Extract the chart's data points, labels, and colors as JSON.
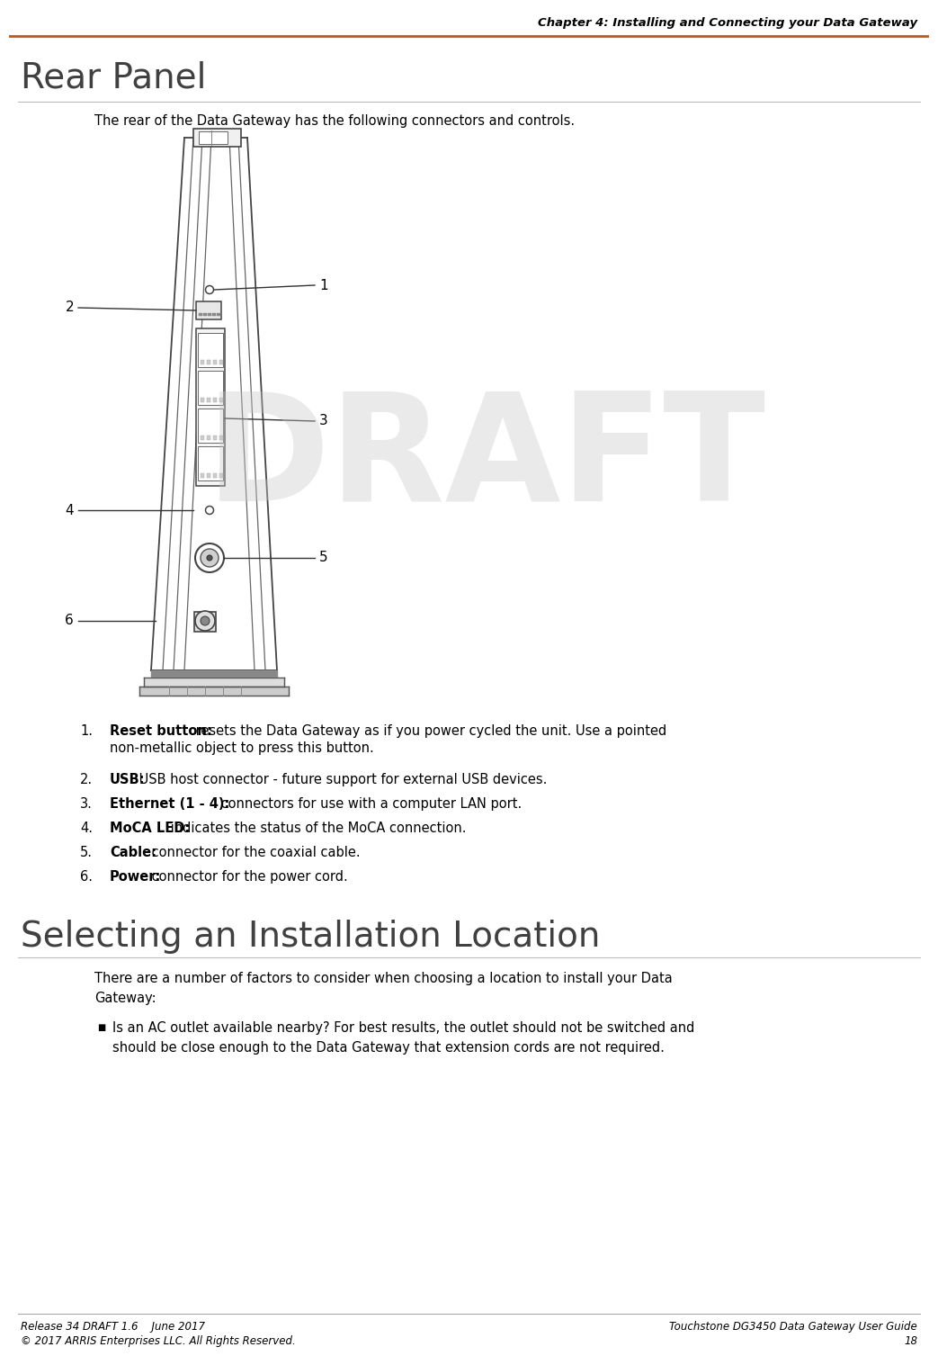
{
  "page_width": 10.23,
  "page_height": 14.8,
  "bg_color": "#ffffff",
  "header_text": "Chapter 4: Installing and Connecting your Data Gateway",
  "header_color": "#000000",
  "header_line_color": "#C8570A",
  "title_text": "Rear Panel",
  "title_fontsize": 28,
  "title_color": "#404040",
  "body_intro": "The rear of the Data Gateway has the following connectors and controls.",
  "section2_title": "Selecting an Installation Location",
  "section2_fontsize": 28,
  "section2_color": "#404040",
  "section2_intro": "There are a number of factors to consider when choosing a location to install your Data\nGateway:",
  "bullet_text": "Is an AC outlet available nearby? For best results, the outlet should not be switched and\nshould be close enough to the Data Gateway that extension cords are not required.",
  "list_items": [
    {
      "num": "1.",
      "bold": "Reset button:",
      "rest": " resets the Data Gateway as if you power cycled the unit. Use a pointed\n     non-metallic object to press this button.",
      "two_line": true
    },
    {
      "num": "2.",
      "bold": "USB:",
      "rest": " USB host connector - future support for external USB devices.",
      "two_line": false
    },
    {
      "num": "3.",
      "bold": "Ethernet (1 - 4):",
      "rest": " connectors for use with a computer LAN port.",
      "two_line": false
    },
    {
      "num": "4.",
      "bold": "MoCA LED:",
      "rest": " indicates the status of the MoCA connection.",
      "two_line": false
    },
    {
      "num": "5.",
      "bold": "Cable:",
      "rest": " connector for the coaxial cable.",
      "two_line": false
    },
    {
      "num": "6.",
      "bold": "Power:",
      "rest": " connector for the power cord.",
      "two_line": false
    }
  ],
  "footer_left1": "Release 34 DRAFT 1.6    June 2017",
  "footer_right1": "Touchstone DG3450 Data Gateway User Guide",
  "footer_left2": "© 2017 ARRIS Enterprises LLC. All Rights Reserved.",
  "footer_right2": "18",
  "footer_color": "#000000",
  "draft_text": "DRAFT",
  "draft_color": "#c8c8c8",
  "line_color": "#808080"
}
